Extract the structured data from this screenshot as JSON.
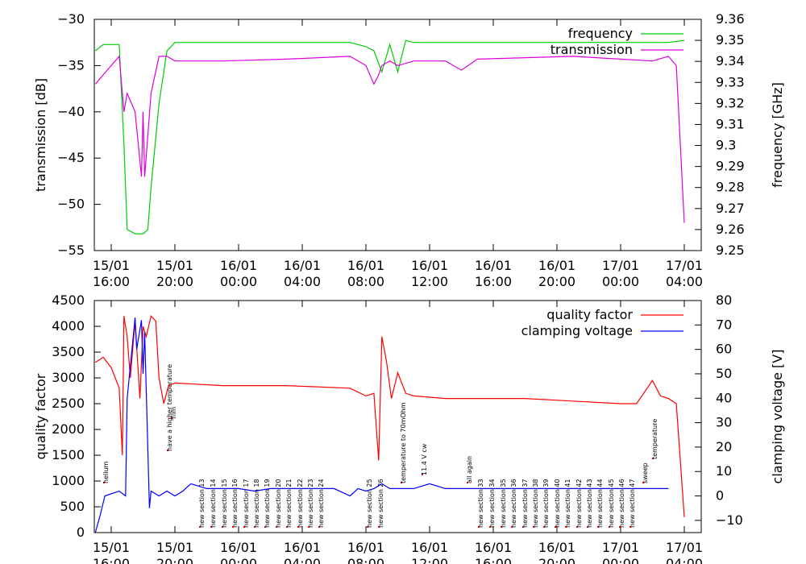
{
  "chart_data": [
    {
      "type": "line",
      "ylabel": "transmission [dB]",
      "y2label": "frequency [GHz]",
      "ylim": [
        -55,
        -30
      ],
      "y2lim": [
        9.25,
        9.36
      ],
      "x_ticks": [
        {
          "l1": "15/01",
          "l2": "16:00"
        },
        {
          "l1": "15/01",
          "l2": "20:00"
        },
        {
          "l1": "16/01",
          "l2": "00:00"
        },
        {
          "l1": "16/01",
          "l2": "04:00"
        },
        {
          "l1": "16/01",
          "l2": "08:00"
        },
        {
          "l1": "16/01",
          "l2": "12:00"
        },
        {
          "l1": "16/01",
          "l2": "16:00"
        },
        {
          "l1": "16/01",
          "l2": "20:00"
        },
        {
          "l1": "17/01",
          "l2": "00:00"
        },
        {
          "l1": "17/01",
          "l2": "04:00"
        }
      ],
      "y_ticks": [
        "-30",
        "-35",
        "-40",
        "-45",
        "-50",
        "-55"
      ],
      "y2_ticks": [
        "9.36",
        "9.35",
        "9.34",
        "9.33",
        "9.32",
        "9.31",
        "9.3",
        "9.29",
        "9.28",
        "9.27",
        "9.26",
        "9.25"
      ],
      "legend_position": "top-right",
      "series": [
        {
          "name": "frequency",
          "color": "#00cc00",
          "axis": "y2",
          "x": [
            0,
            0.5,
            1,
            1.5,
            1.8,
            2.0,
            2.5,
            3.0,
            3.3,
            3.5,
            4.0,
            4.5,
            5,
            10,
            16,
            17,
            17.5,
            18,
            18.5,
            19,
            19.5,
            20,
            21,
            24,
            30,
            36,
            37
          ],
          "y": [
            9.345,
            9.348,
            9.348,
            9.348,
            9.3,
            9.26,
            9.258,
            9.258,
            9.26,
            9.28,
            9.32,
            9.345,
            9.349,
            9.349,
            9.349,
            9.347,
            9.345,
            9.335,
            9.348,
            9.335,
            9.35,
            9.349,
            9.349,
            9.349,
            9.349,
            9.349,
            9.35
          ]
        },
        {
          "name": "transmission",
          "color": "#dd00dd",
          "axis": "y",
          "x": [
            0,
            0.5,
            1,
            1.5,
            1.8,
            2.0,
            2.5,
            2.9,
            3.0,
            3.1,
            3.5,
            4.0,
            4.5,
            5,
            8,
            12,
            16,
            17,
            17.5,
            17.8,
            18,
            18.5,
            19,
            20,
            22,
            23,
            24,
            30,
            35,
            36,
            36.5,
            37
          ],
          "y": [
            -37,
            -36,
            -35,
            -34,
            -40,
            -38,
            -40,
            -47,
            -40,
            -47,
            -38,
            -34,
            -34,
            -34.5,
            -34.5,
            -34.3,
            -34,
            -35,
            -37,
            -36,
            -35,
            -34.5,
            -35,
            -34.5,
            -34.5,
            -35.5,
            -34.3,
            -34,
            -34.5,
            -34,
            -35,
            -52
          ]
        }
      ]
    },
    {
      "type": "line",
      "ylabel": "quality factor",
      "y2label": "clamping voltage [V]",
      "ylim": [
        0,
        4500
      ],
      "y2lim": [
        -15,
        80
      ],
      "x_ticks": [
        {
          "l1": "15/01",
          "l2": "16:00"
        },
        {
          "l1": "15/01",
          "l2": "20:00"
        },
        {
          "l1": "16/01",
          "l2": "00:00"
        },
        {
          "l1": "16/01",
          "l2": "04:00"
        },
        {
          "l1": "16/01",
          "l2": "08:00"
        },
        {
          "l1": "16/01",
          "l2": "12:00"
        },
        {
          "l1": "16/01",
          "l2": "16:00"
        },
        {
          "l1": "16/01",
          "l2": "20:00"
        },
        {
          "l1": "17/01",
          "l2": "00:00"
        },
        {
          "l1": "17/01",
          "l2": "04:00"
        }
      ],
      "y_ticks": [
        "4500",
        "4000",
        "3500",
        "3000",
        "2500",
        "2000",
        "1500",
        "1000",
        "500",
        "0"
      ],
      "y2_ticks": [
        "80",
        "70",
        "60",
        "50",
        "40",
        "30",
        "20",
        "10",
        "0",
        "-10"
      ],
      "legend_position": "top-right",
      "series": [
        {
          "name": "quality factor",
          "color": "#ff0000",
          "axis": "y",
          "x": [
            0,
            0.5,
            1,
            1.5,
            1.7,
            1.8,
            2.0,
            2.2,
            2.5,
            2.8,
            3.0,
            3.2,
            3.5,
            3.8,
            4.0,
            4.3,
            4.6,
            5,
            8,
            12,
            16,
            17,
            17.5,
            17.8,
            18,
            18.3,
            18.6,
            19,
            19.5,
            20,
            22,
            24,
            27,
            30,
            33,
            34,
            35,
            35.5,
            36,
            36.5,
            37
          ],
          "y": [
            3300,
            3400,
            3200,
            2800,
            1500,
            4200,
            3800,
            3000,
            4100,
            2600,
            4000,
            3800,
            4200,
            4100,
            3000,
            2500,
            2850,
            2900,
            2850,
            2850,
            2800,
            2650,
            2700,
            1400,
            3800,
            3300,
            2600,
            3100,
            2700,
            2650,
            2600,
            2600,
            2600,
            2550,
            2500,
            2500,
            2950,
            2650,
            2600,
            2500,
            300
          ]
        },
        {
          "name": "clamping voltage",
          "color": "#0000ff",
          "axis": "y2",
          "x": [
            0,
            0.3,
            0.6,
            1.5,
            1.9,
            2.0,
            2.5,
            2.6,
            2.9,
            3.0,
            3.1,
            3.4,
            3.5,
            4.0,
            4.5,
            5.0,
            5.5,
            6,
            7,
            8,
            9,
            10,
            11,
            12,
            13,
            14,
            15,
            16,
            16.5,
            17,
            17.5,
            18,
            18.5,
            19,
            20,
            21,
            22,
            23,
            24,
            25,
            26,
            27,
            28,
            29,
            30,
            31,
            32,
            33,
            34,
            35,
            36
          ],
          "y": [
            -15,
            -8,
            0,
            2,
            0,
            40,
            73,
            60,
            72,
            50,
            67,
            -5,
            2,
            0,
            2,
            0,
            2,
            5,
            3,
            3,
            3,
            2,
            3,
            3,
            3,
            3,
            3,
            0,
            3,
            2,
            3,
            5,
            3,
            3,
            3,
            5,
            3,
            3,
            3,
            3,
            3,
            3,
            3,
            3,
            3,
            3,
            3,
            3,
            3,
            3,
            3
          ]
        }
      ],
      "annotations": [
        "new section 13",
        "new section 14",
        "new section 15",
        "new section 16",
        "new section 17",
        "new section 18",
        "new section 19",
        "new section 20",
        "new section 21",
        "new section 22",
        "new section 23",
        "new section 24",
        "new section 25",
        "new section 26",
        "new section 33",
        "new section 34",
        "new section 35",
        "new section 36",
        "new section 37",
        "new section 38",
        "new section 39",
        "new section 40",
        "new section 41",
        "new section 42",
        "new section 43",
        "new section 44",
        "new section 45",
        "new section 46",
        "new section 47",
        "have a higher temperature",
        "film",
        "helium",
        "11.4 V cw",
        "all again",
        "sweep",
        "temperature",
        "temperature to 70mOhm"
      ]
    }
  ]
}
